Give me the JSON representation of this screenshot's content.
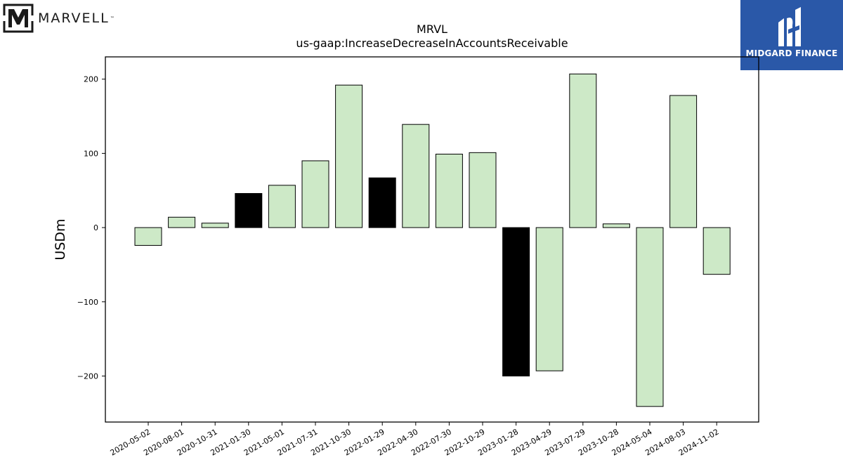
{
  "branding": {
    "left_logo": {
      "icon": "marvell-logo-icon",
      "text": "MARVELL",
      "tm": "™"
    },
    "right_logo": {
      "icon": "midgard-logo-icon",
      "text": "MIDGARD FINANCE",
      "color": "#2a58a8"
    }
  },
  "chart_data": {
    "type": "bar",
    "title": "MRVL",
    "subtitle": "us-gaap:IncreaseDecreaseInAccountsReceivable",
    "xlabel": "",
    "ylabel": "USDm",
    "ylim": [
      -262,
      230
    ],
    "yticks": [
      -200,
      -100,
      0,
      100,
      200
    ],
    "ytick_labels": [
      "−200",
      "−100",
      "0",
      "100",
      "200"
    ],
    "grid": false,
    "legend": "none",
    "colors": {
      "default": "#cde9c7",
      "highlight": "#000000",
      "edge": "#000000"
    },
    "categories": [
      "2020-05-02",
      "2020-08-01",
      "2020-10-31",
      "2021-01-30",
      "2021-05-01",
      "2021-07-31",
      "2021-10-30",
      "2022-01-29",
      "2022-04-30",
      "2022-07-30",
      "2022-10-29",
      "2023-01-28",
      "2023-04-29",
      "2023-07-29",
      "2023-10-28",
      "2024-05-04",
      "2024-08-03",
      "2024-11-02"
    ],
    "values": [
      -24,
      14,
      6,
      46,
      57,
      90,
      192,
      67,
      139,
      99,
      101,
      -200,
      -193,
      207,
      5,
      -241,
      178,
      -63
    ],
    "highlight": [
      false,
      false,
      false,
      true,
      false,
      false,
      false,
      true,
      false,
      false,
      false,
      true,
      false,
      false,
      false,
      false,
      false,
      false
    ]
  }
}
